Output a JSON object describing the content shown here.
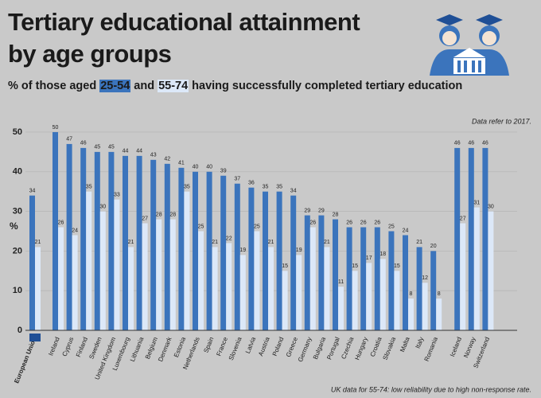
{
  "chart_data": {
    "type": "bar",
    "title": "Tertiary educational attainment by age groups",
    "subtitle_parts": [
      "% of those aged",
      "and",
      "having successfully completed tertiary education"
    ],
    "note": "Data refer to 2017.",
    "footnote": "UK data for 55-74: low reliability due to high non-response rate.",
    "y_label": "%",
    "categories": [
      "European Union",
      "Ireland",
      "Cyprus",
      "Finland",
      "Sweden",
      "United Kingdom",
      "Luxembourg",
      "Lithuania",
      "Belgium",
      "Denmark",
      "Estonia",
      "Netherlands",
      "Spain",
      "France",
      "Slovenia",
      "Latvia",
      "Austria",
      "Poland",
      "Greece",
      "Germany",
      "Bulgaria",
      "Portugal",
      "Czechia",
      "Hungary",
      "Croatia",
      "Slovakia",
      "Malta",
      "Italy",
      "Romania",
      "Iceland",
      "Norway",
      "Switzerland"
    ],
    "series": [
      {
        "name": "25-54",
        "color": "#3b74bc",
        "values": [
          34,
          50,
          47,
          46,
          45,
          45,
          44,
          44,
          43,
          42,
          41,
          40,
          40,
          39,
          37,
          36,
          35,
          35,
          34,
          29,
          29,
          28,
          26,
          26,
          26,
          25,
          24,
          21,
          20,
          46,
          46,
          46
        ]
      },
      {
        "name": "55-74",
        "color": "#dce8f8",
        "values": [
          21,
          26,
          24,
          35,
          30,
          33,
          21,
          27,
          28,
          28,
          35,
          25,
          21,
          22,
          19,
          25,
          21,
          15,
          19,
          26,
          21,
          11,
          15,
          17,
          18,
          15,
          8,
          12,
          8,
          27,
          31,
          30
        ]
      }
    ],
    "ylim": [
      0,
      52
    ],
    "yticks": [
      0,
      10,
      20,
      30,
      40,
      50
    ],
    "grid": true
  }
}
